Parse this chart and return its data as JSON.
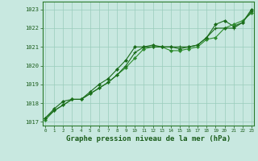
{
  "title": "Graphe pression niveau de la mer (hPa)",
  "xlabel_hours": [
    0,
    1,
    2,
    3,
    4,
    5,
    6,
    7,
    8,
    9,
    10,
    11,
    12,
    13,
    14,
    15,
    16,
    17,
    18,
    19,
    20,
    21,
    22,
    23
  ],
  "series1": [
    1017.2,
    1017.7,
    1018.1,
    1018.2,
    1018.2,
    1018.6,
    1019.0,
    1019.3,
    1019.8,
    1020.3,
    1021.0,
    1021.0,
    1021.1,
    1021.0,
    1021.0,
    1020.9,
    1021.0,
    1021.1,
    1021.5,
    1022.2,
    1022.4,
    1022.1,
    1022.3,
    1023.0
  ],
  "series2": [
    1017.1,
    1017.6,
    1017.9,
    1018.2,
    1018.2,
    1018.5,
    1018.8,
    1019.1,
    1019.5,
    1019.9,
    1020.4,
    1020.9,
    1021.0,
    1021.0,
    1020.8,
    1020.8,
    1020.9,
    1021.0,
    1021.4,
    1021.5,
    1022.0,
    1022.2,
    1022.4,
    1022.8
  ],
  "series3": [
    1017.2,
    1017.6,
    1017.9,
    1018.2,
    1018.2,
    1018.5,
    1018.8,
    1019.1,
    1019.5,
    1020.0,
    1020.7,
    1021.0,
    1021.0,
    1021.0,
    1021.0,
    1021.0,
    1021.0,
    1021.1,
    1021.5,
    1022.0,
    1022.0,
    1022.0,
    1022.3,
    1022.9
  ],
  "line_color1": "#1a6b1a",
  "line_color2": "#2d8b2d",
  "line_color3": "#1a6b1a",
  "bg_color": "#c8e8e0",
  "grid_color": "#99ccbb",
  "border_color": "#2a7a2a",
  "label_color": "#1a5c1a",
  "ylim": [
    1016.8,
    1023.4
  ],
  "yticks": [
    1017,
    1018,
    1019,
    1020,
    1021,
    1022,
    1023
  ],
  "title_color": "#1a5c1a",
  "title_fontsize": 6.5,
  "tick_fontsize": 5.0,
  "xtick_fontsize": 4.2
}
